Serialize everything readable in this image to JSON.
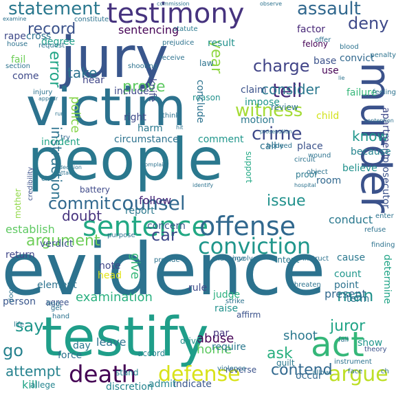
{
  "words": [
    {
      "t": "evidence",
      "c": "#2c728e"
    },
    {
      "t": "people",
      "c": "#2a788e"
    },
    {
      "t": "testify",
      "c": "#1f9e89"
    },
    {
      "t": "jury",
      "c": "#39568c"
    },
    {
      "t": "victim",
      "c": "#2c728e"
    },
    {
      "t": "murder",
      "c": "#3b528b"
    },
    {
      "t": "testimony",
      "c": "#46337e"
    },
    {
      "t": "sentence",
      "c": "#22a884"
    },
    {
      "t": "offense",
      "c": "#31688e"
    },
    {
      "t": "conviction",
      "c": "#1f968b"
    },
    {
      "t": "death",
      "c": "#440154"
    },
    {
      "t": "defense",
      "c": "#d8e219"
    },
    {
      "t": "argue",
      "c": "#bddf26"
    },
    {
      "t": "act",
      "c": "#35b779"
    },
    {
      "t": "witness",
      "c": "#a5db36"
    },
    {
      "t": "crime",
      "c": "#3e4989"
    },
    {
      "t": "counsel",
      "c": "#31688e"
    },
    {
      "t": "statement",
      "c": "#2a788e"
    },
    {
      "t": "assault",
      "c": "#31688e"
    },
    {
      "t": "record",
      "c": "#3b528b"
    },
    {
      "t": "charge",
      "c": "#414487"
    },
    {
      "t": "tell",
      "c": "#482878"
    },
    {
      "t": "year",
      "c": "#90d743"
    },
    {
      "t": "commit",
      "c": "#31688e"
    },
    {
      "t": "issue",
      "c": "#21918c"
    },
    {
      "t": "instruction",
      "c": "#2c728e"
    },
    {
      "t": "argument",
      "c": "#6ece58"
    },
    {
      "t": "consider",
      "c": "#2a788e"
    },
    {
      "t": "take",
      "c": "#2c728e"
    },
    {
      "t": "error",
      "c": "#20a486"
    },
    {
      "t": "prove",
      "c": "#5ec962"
    },
    {
      "t": "police",
      "c": "#86d549"
    },
    {
      "t": "deny",
      "c": "#3e4989"
    },
    {
      "t": "sentencing",
      "c": "#440154"
    },
    {
      "t": "contend",
      "c": "#31688e"
    },
    {
      "t": "juror",
      "c": "#20a486"
    },
    {
      "t": "man",
      "c": "#21918c"
    },
    {
      "t": "say",
      "c": "#1f968b"
    },
    {
      "t": "go",
      "c": "#26828e"
    },
    {
      "t": "ask",
      "c": "#29af7f"
    },
    {
      "t": "attempt",
      "c": "#26828e"
    },
    {
      "t": "car",
      "c": "#3e4989"
    },
    {
      "t": "give",
      "c": "#35b779"
    },
    {
      "t": "doubt",
      "c": "#46337e"
    },
    {
      "t": "know",
      "c": "#1f968b"
    },
    {
      "t": "examination",
      "c": "#2ab07f"
    },
    {
      "t": "abuse",
      "c": "#440154"
    },
    {
      "t": "home",
      "c": "#5ec962"
    },
    {
      "t": "shoot",
      "c": "#2a788e"
    },
    {
      "t": "kill",
      "c": "#20a486"
    },
    {
      "t": "discretion",
      "c": "#25848e"
    },
    {
      "t": "indicate",
      "c": "#39568c"
    },
    {
      "t": "admit",
      "c": "#25848e"
    },
    {
      "t": "present",
      "c": "#31688e"
    },
    {
      "t": "verdict",
      "c": "#3b528b"
    },
    {
      "t": "follow",
      "c": "#482878"
    },
    {
      "t": "establish",
      "c": "#5ec962"
    },
    {
      "t": "conduct",
      "c": "#2a788e"
    },
    {
      "t": "believe",
      "c": "#21918c"
    },
    {
      "t": "prosecutor",
      "c": "#3b528b"
    },
    {
      "t": "apartment",
      "c": "#3e4989"
    },
    {
      "t": "because",
      "c": "#25848e"
    },
    {
      "t": "degree",
      "c": "#1f9e89"
    },
    {
      "t": "felony",
      "c": "#440154"
    },
    {
      "t": "factor",
      "c": "#482878"
    },
    {
      "t": "convict",
      "c": "#31688e"
    },
    {
      "t": "base",
      "c": "#3b528b"
    },
    {
      "t": "use",
      "c": "#440154"
    },
    {
      "t": "fail",
      "c": "#6ece58"
    },
    {
      "t": "hear",
      "c": "#404688"
    },
    {
      "t": "include",
      "c": "#3e4989"
    },
    {
      "t": "impose",
      "c": "#1f968b"
    },
    {
      "t": "claim",
      "c": "#3b528b"
    },
    {
      "t": "review",
      "c": "#2c728e"
    },
    {
      "t": "reason",
      "c": "#21918c"
    },
    {
      "t": "right",
      "c": "#3e4989"
    },
    {
      "t": "harm",
      "c": "#2a788e"
    },
    {
      "t": "circumstance",
      "c": "#2c728e"
    },
    {
      "t": "comment",
      "c": "#1f968b"
    },
    {
      "t": "motion",
      "c": "#2a788e"
    },
    {
      "t": "incident",
      "c": "#20a486"
    },
    {
      "t": "battery",
      "c": "#3e4989"
    },
    {
      "t": "report",
      "c": "#2a788e"
    },
    {
      "t": "concern",
      "c": "#39568c"
    },
    {
      "t": "call",
      "c": "#2c728e"
    },
    {
      "t": "proof",
      "c": "#2a788e"
    },
    {
      "t": "support",
      "c": "#22a884"
    },
    {
      "t": "place",
      "c": "#3b528b"
    },
    {
      "t": "room",
      "c": "#31688e"
    },
    {
      "t": "child",
      "c": "#d2e21b"
    },
    {
      "t": "failure",
      "c": "#35b779"
    },
    {
      "t": "return",
      "c": "#404688"
    },
    {
      "t": "element",
      "c": "#2c728e"
    },
    {
      "t": "note",
      "c": "#404688"
    },
    {
      "t": "head",
      "c": "#e1e418"
    },
    {
      "t": "rule",
      "c": "#3e4989"
    },
    {
      "t": "judge",
      "c": "#2ab07f"
    },
    {
      "t": "raise",
      "c": "#21918c"
    },
    {
      "t": "count",
      "c": "#1f968b"
    },
    {
      "t": "point",
      "c": "#2c728e"
    },
    {
      "t": "term",
      "c": "#2c728e"
    },
    {
      "t": "person",
      "c": "#39568c"
    },
    {
      "t": "leave",
      "c": "#2c728e"
    },
    {
      "t": "force",
      "c": "#2c728e"
    },
    {
      "t": "day",
      "c": "#2a788e"
    },
    {
      "t": "require",
      "c": "#2a788e"
    },
    {
      "t": "par",
      "c": "#46337e"
    },
    {
      "t": "show",
      "c": "#1f968b"
    },
    {
      "t": "drive",
      "c": "#21918c"
    },
    {
      "t": "accord",
      "c": "#25848e"
    },
    {
      "t": "stand",
      "c": "#25848e"
    },
    {
      "t": "allege",
      "c": "#25848e"
    },
    {
      "t": "reverse",
      "c": "#3b528b"
    },
    {
      "t": "guilt",
      "c": "#2a788e"
    },
    {
      "t": "occur",
      "c": "#31688e"
    },
    {
      "t": "determine",
      "c": "#20a486"
    },
    {
      "t": "cause",
      "c": "#2a788e"
    },
    {
      "t": "knife",
      "c": "#3e4989"
    },
    {
      "t": "result",
      "c": "#21918c"
    },
    {
      "t": "conclude",
      "c": "#2c728e"
    },
    {
      "t": "rape",
      "c": "#3e4989"
    },
    {
      "t": "cross",
      "c": "#2c728e"
    },
    {
      "t": "come",
      "c": "#3e4989"
    },
    {
      "t": "mother",
      "c": "#8fd744"
    },
    {
      "t": "credibility",
      "c": "#3b528b"
    },
    {
      "t": "intent",
      "c": "#2a788e"
    },
    {
      "t": "agree",
      "c": "#3b528b"
    },
    {
      "t": "get",
      "c": "#2c728e"
    },
    {
      "t": "hand",
      "c": "#2c728e"
    },
    {
      "t": "law",
      "c": "#2c728e"
    },
    {
      "t": "statute",
      "c": "#2a788e"
    },
    {
      "t": "affirm",
      "c": "#3b528b"
    },
    {
      "t": "try",
      "c": "#31688e"
    },
    {
      "t": "life",
      "c": "#2a788e"
    },
    {
      "t": "allow",
      "c": "#2c728e"
    },
    {
      "t": "theory",
      "c": "#3b528b"
    },
    {
      "t": "face",
      "c": "#2c728e"
    },
    {
      "t": "strike",
      "c": "#2c728e"
    },
    {
      "t": "wound",
      "c": "#2c728e"
    },
    {
      "t": "object",
      "c": "#2c728e"
    },
    {
      "t": "penalty",
      "c": "#2c728e"
    },
    {
      "t": "blood",
      "c": "#2c728e"
    },
    {
      "t": "offer",
      "c": "#2c728e"
    },
    {
      "t": "request",
      "c": "#2c728e"
    },
    {
      "t": "house",
      "c": "#2c728e"
    },
    {
      "t": "section",
      "c": "#2c728e"
    },
    {
      "t": "injury",
      "c": "#2c728e"
    },
    {
      "t": "appear",
      "c": "#2c728e"
    },
    {
      "t": "find",
      "c": "#2c728e"
    },
    {
      "t": "enter",
      "c": "#2c728e"
    },
    {
      "t": "refuse",
      "c": "#2c728e"
    },
    {
      "t": "finding",
      "c": "#2c728e"
    },
    {
      "t": "threaten",
      "c": "#2c728e"
    },
    {
      "t": "challenge",
      "c": "#2c728e"
    },
    {
      "t": "involve",
      "c": "#2c728e"
    },
    {
      "t": "instruct",
      "c": "#2c728e"
    },
    {
      "t": "fall",
      "c": "#2c728e"
    },
    {
      "t": "purpose",
      "c": "#2c728e"
    },
    {
      "t": "provide",
      "c": "#2c728e"
    },
    {
      "t": "violence",
      "c": "#2c728e"
    },
    {
      "t": "shooting",
      "c": "#2c728e"
    },
    {
      "t": "prejudice",
      "c": "#2c728e"
    },
    {
      "t": "constitute",
      "c": "#2c728e"
    },
    {
      "t": "examine",
      "c": "#2c728e"
    },
    {
      "t": "observe",
      "c": "#2c728e"
    },
    {
      "t": "commission",
      "c": "#2c728e"
    },
    {
      "t": "contention",
      "c": "#2c728e"
    },
    {
      "t": "complain",
      "c": "#2c728e"
    },
    {
      "t": "decision",
      "c": "#2c728e"
    },
    {
      "t": "attack",
      "c": "#2c728e"
    },
    {
      "t": "hospital",
      "c": "#2c728e"
    },
    {
      "t": "identify",
      "c": "#2c728e"
    },
    {
      "t": "prosecution",
      "c": "#2c728e"
    },
    {
      "t": "receive",
      "c": "#2c728e"
    },
    {
      "t": "cite",
      "c": "#2c728e"
    },
    {
      "t": "door",
      "c": "#2c728e"
    },
    {
      "t": "circuit",
      "c": "#2c728e"
    },
    {
      "t": "body",
      "c": "#2c728e"
    },
    {
      "t": "need",
      "c": "#2c728e"
    },
    {
      "t": "hit",
      "c": "#2c728e"
    },
    {
      "t": "think",
      "c": "#2c728e"
    },
    {
      "t": "lie",
      "c": "#2c728e"
    },
    {
      "t": "run",
      "c": "#2c728e"
    },
    {
      "t": "feeling",
      "c": "#2c728e"
    },
    {
      "t": "instrument",
      "c": "#2c728e"
    },
    {
      "t": "ch",
      "c": "#2c728e"
    },
    {
      "t": "err",
      "c": "#2c728e"
    },
    {
      "t": "unit",
      "c": "#2c728e"
    }
  ]
}
